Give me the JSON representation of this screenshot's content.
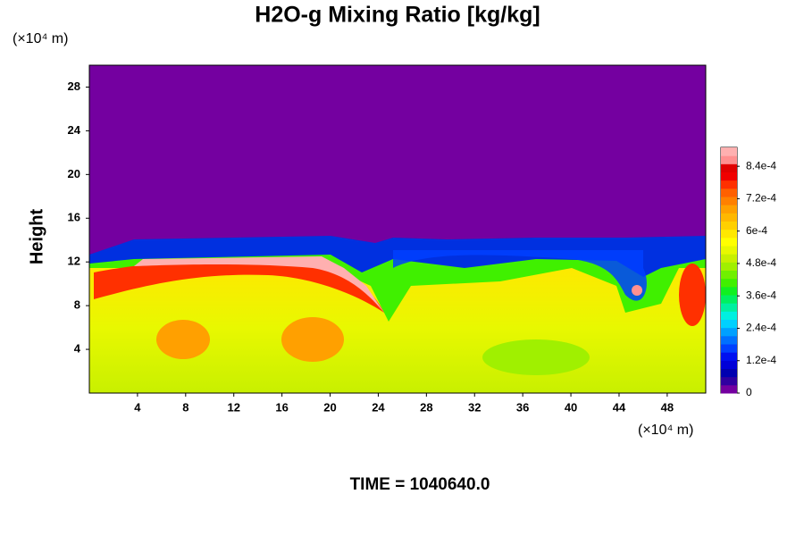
{
  "chart_data": {
    "type": "contour",
    "title": "H2O-g Mixing Ratio [kg/kg]",
    "y_unit": "(×10⁴ m)",
    "x_unit": "(×10⁴ m)",
    "y_label": "Height",
    "time_label": "TIME = 1040640.0",
    "xlim": [
      0,
      51.2
    ],
    "xticks": [
      4,
      8,
      12,
      16,
      20,
      24,
      28,
      32,
      36,
      40,
      44,
      48
    ],
    "ylim": [
      0,
      30
    ],
    "yticks": [
      4,
      8,
      12,
      16,
      20,
      24,
      28
    ],
    "clim": [
      0,
      0.00091
    ],
    "cticks": [
      0,
      {
        "value": 0.00012,
        "label": "1.2e-4"
      },
      {
        "value": 0.00024,
        "label": "2.4e-4"
      },
      {
        "value": 0.00036,
        "label": "3.6e-4"
      },
      {
        "value": 0.00048,
        "label": "4.8e-4"
      },
      {
        "value": 0.0006,
        "label": "6e-4"
      },
      {
        "value": 0.00072,
        "label": "7.2e-4"
      },
      {
        "value": 0.00084,
        "label": "8.4e-4"
      }
    ],
    "colormap": [
      "#7400a0",
      "#3000a0",
      "#0000b0",
      "#0000d8",
      "#0010f0",
      "#0040ff",
      "#0070ff",
      "#00a0ff",
      "#00d0ff",
      "#00f0e0",
      "#00f0a0",
      "#00f060",
      "#10f020",
      "#40f000",
      "#70f000",
      "#a0f000",
      "#c8f000",
      "#e8f800",
      "#ffff00",
      "#ffe800",
      "#ffd000",
      "#ffb800",
      "#ffa000",
      "#ff8000",
      "#ff6000",
      "#ff3000",
      "#f00000",
      "#e00000",
      "#ff9090",
      "#ffb0b0"
    ]
  }
}
